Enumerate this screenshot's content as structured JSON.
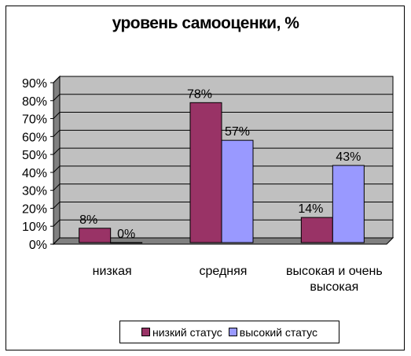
{
  "chart_data": {
    "type": "bar",
    "title": "уровень самооценки, %",
    "categories": [
      [
        "низкая"
      ],
      [
        "средняя"
      ],
      [
        "высокая и очень",
        "высокая"
      ]
    ],
    "series": [
      {
        "name": "низкий статус",
        "values": [
          8,
          78,
          14
        ],
        "labels": [
          "8%",
          "78%",
          "14%"
        ],
        "color": "#993366"
      },
      {
        "name": "высокий статус",
        "values": [
          0,
          57,
          43
        ],
        "labels": [
          "0%",
          "57%",
          "43%"
        ],
        "color": "#9999ff"
      }
    ],
    "yticks": [
      "0%",
      "10%",
      "20%",
      "30%",
      "40%",
      "50%",
      "60%",
      "70%",
      "80%",
      "90%"
    ],
    "ylim": [
      0,
      90
    ],
    "grid": true,
    "plot_background": "#c0c0c0",
    "legend_position": "bottom"
  }
}
